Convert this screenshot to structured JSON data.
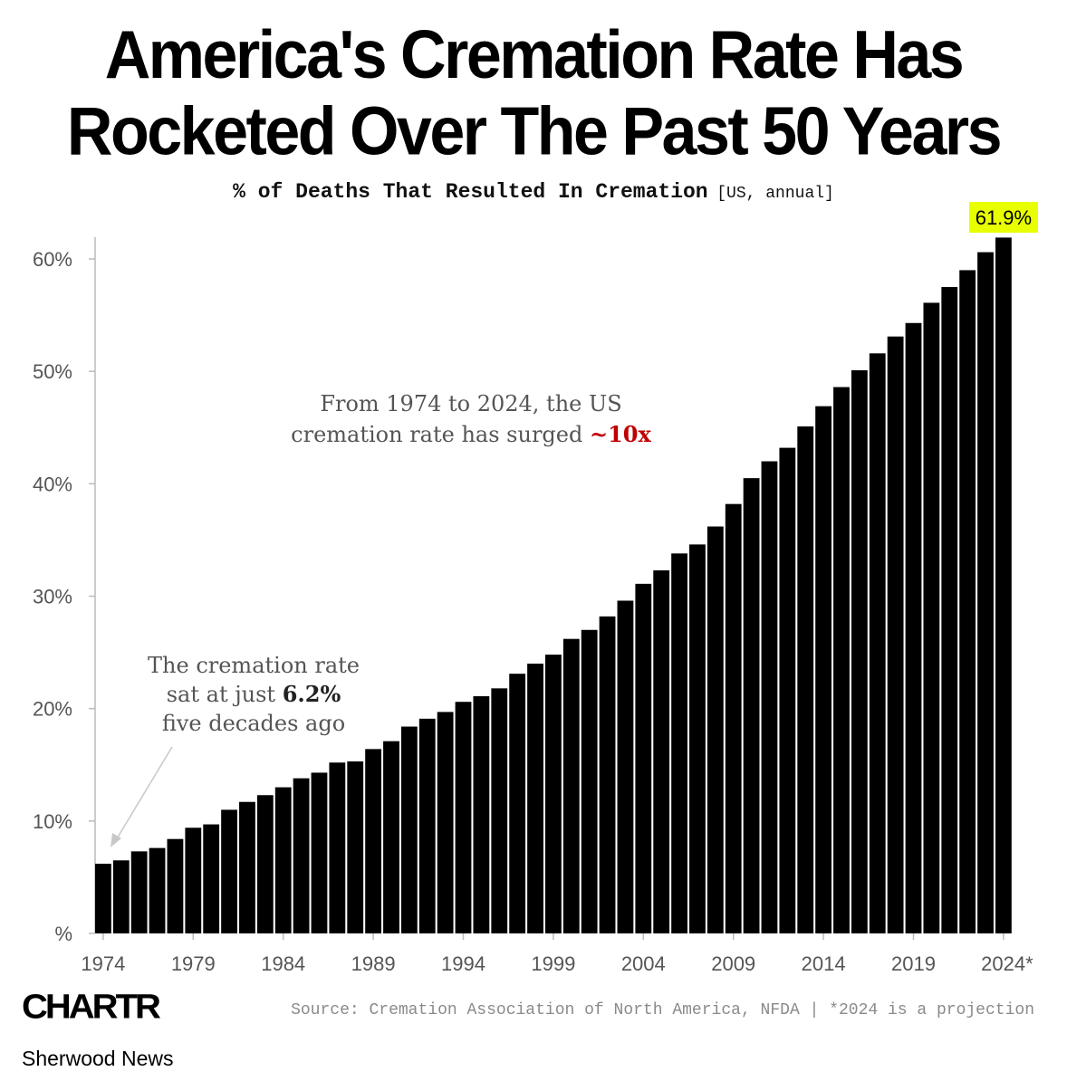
{
  "header": {
    "title_line1": "America's Cremation Rate Has",
    "title_line2": "Rocketed Over The Past 50 Years",
    "subtitle": "% of Deaths That Resulted In Cremation",
    "subtitle_unit": "[US, annual]"
  },
  "annotations": {
    "mid_line1": "From 1974 to 2024,  the US",
    "mid_line2_prefix": "cremation rate has surged ",
    "mid_line2_highlight": "~10x",
    "left_line1": "The cremation rate",
    "left_line2_prefix": "sat at just ",
    "left_line2_bold": "6.2%",
    "left_line3": "five decades ago",
    "last_value_label": "61.9%"
  },
  "footer": {
    "logo": "CHARTR",
    "source": "Source: Cremation Association of North America, NFDA | *2024 is a projection",
    "publisher": "Sherwood News"
  },
  "colors": {
    "bar": "#000000",
    "highlight_bg": "#e8ff00",
    "accent_red": "#c00000",
    "axis_text": "#555555"
  },
  "chart_data": {
    "type": "bar",
    "title": "America's Cremation Rate Has Rocketed Over The Past 50 Years",
    "subtitle": "% of Deaths That Resulted In Cremation [US, annual]",
    "categories": [
      1974,
      1975,
      1976,
      1977,
      1978,
      1979,
      1980,
      1981,
      1982,
      1983,
      1984,
      1985,
      1986,
      1987,
      1988,
      1989,
      1990,
      1991,
      1992,
      1993,
      1994,
      1995,
      1996,
      1997,
      1998,
      1999,
      2000,
      2001,
      2002,
      2003,
      2004,
      2005,
      2006,
      2007,
      2008,
      2009,
      2010,
      2011,
      2012,
      2013,
      2014,
      2015,
      2016,
      2017,
      2018,
      2019,
      2020,
      2021,
      2022,
      2023,
      2024
    ],
    "values": [
      6.2,
      6.5,
      7.3,
      7.6,
      8.4,
      9.4,
      9.7,
      11.0,
      11.7,
      12.3,
      13.0,
      13.8,
      14.3,
      15.2,
      15.3,
      16.4,
      17.1,
      18.4,
      19.1,
      19.7,
      20.6,
      21.1,
      21.8,
      23.1,
      24.0,
      24.8,
      26.2,
      27.0,
      28.2,
      29.6,
      31.1,
      32.3,
      33.8,
      34.6,
      36.2,
      38.2,
      40.5,
      42.0,
      43.2,
      45.1,
      46.9,
      48.6,
      50.1,
      51.6,
      53.1,
      54.3,
      56.1,
      57.5,
      59.0,
      60.6,
      61.9
    ],
    "ylim": [
      0,
      62
    ],
    "yticks": [
      0,
      10,
      20,
      30,
      40,
      50,
      60
    ],
    "ytick_labels": [
      "%",
      "10%",
      "20%",
      "30%",
      "40%",
      "50%",
      "60%"
    ],
    "xtick_labels": [
      "1974",
      "1979",
      "1984",
      "1989",
      "1994",
      "1999",
      "2004",
      "2009",
      "2014",
      "2019",
      "2024*"
    ],
    "grid": false
  }
}
